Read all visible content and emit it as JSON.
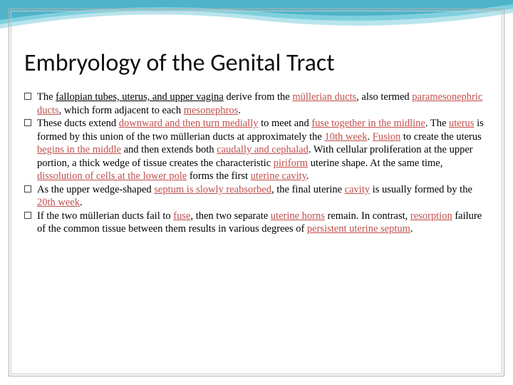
{
  "slide": {
    "title": "Embryology of the Genital Tract",
    "title_fontsize": 34,
    "text_fontsize": 14.5,
    "highlight_color": "#c0504d",
    "text_color": "#000000",
    "background_color": "#ffffff",
    "wave_colors": [
      "#4fb3c9",
      "#7fd0dd",
      "#b8e4ec"
    ],
    "border_colors": [
      "#b0b0b0",
      "#c8c8c8"
    ],
    "bullets": [
      {
        "parts": [
          {
            "t": "The ",
            "hl": false,
            "u": false
          },
          {
            "t": "fallopian tubes, uterus, and upper vagina",
            "hl": false,
            "u": true
          },
          {
            "t": " derive from the ",
            "hl": false,
            "u": false
          },
          {
            "t": "müllerian ducts",
            "hl": true,
            "u": true
          },
          {
            "t": ", also termed ",
            "hl": false,
            "u": false
          },
          {
            "t": "paramesonephric ducts",
            "hl": true,
            "u": true
          },
          {
            "t": ", which form adjacent to each ",
            "hl": false,
            "u": false
          },
          {
            "t": "mesonephros",
            "hl": true,
            "u": true
          },
          {
            "t": ".",
            "hl": false,
            "u": false
          }
        ]
      },
      {
        "parts": [
          {
            "t": " These ducts extend ",
            "hl": false,
            "u": false
          },
          {
            "t": "downward and then turn medially",
            "hl": true,
            "u": true
          },
          {
            "t": " to meet and ",
            "hl": false,
            "u": false
          },
          {
            "t": "fuse together in the midline",
            "hl": true,
            "u": true
          },
          {
            "t": ". The ",
            "hl": false,
            "u": false
          },
          {
            "t": "uterus",
            "hl": true,
            "u": true
          },
          {
            "t": " is formed by this union of the two müllerian ducts at approximately the ",
            "hl": false,
            "u": false
          },
          {
            "t": "10th week",
            "hl": true,
            "u": true
          },
          {
            "t": ". ",
            "hl": false,
            "u": false
          },
          {
            "t": "Fusion",
            "hl": true,
            "u": true
          },
          {
            "t": " to create the uterus ",
            "hl": false,
            "u": false
          },
          {
            "t": "begins in the middle",
            "hl": true,
            "u": true
          },
          {
            "t": " and then extends both ",
            "hl": false,
            "u": false
          },
          {
            "t": "caudally and cephalad",
            "hl": true,
            "u": true
          },
          {
            "t": ". With cellular proliferation at the upper portion, a thick wedge of tissue creates the characteristic ",
            "hl": false,
            "u": false
          },
          {
            "t": "piriform",
            "hl": true,
            "u": true
          },
          {
            "t": " uterine shape. At the same time, ",
            "hl": false,
            "u": false
          },
          {
            "t": "dissolution of cells at the lower pole",
            "hl": true,
            "u": true
          },
          {
            "t": " forms the first ",
            "hl": false,
            "u": false
          },
          {
            "t": "uterine cavity",
            "hl": true,
            "u": true
          },
          {
            "t": ".",
            "hl": false,
            "u": false
          }
        ]
      },
      {
        "parts": [
          {
            "t": "As the upper wedge-shaped ",
            "hl": false,
            "u": false
          },
          {
            "t": "septum is slowly reabsorbed",
            "hl": true,
            "u": true
          },
          {
            "t": ", the final uterine ",
            "hl": false,
            "u": false
          },
          {
            "t": "cavity",
            "hl": true,
            "u": true
          },
          {
            "t": " is usually formed by the ",
            "hl": false,
            "u": false
          },
          {
            "t": "20th week",
            "hl": true,
            "u": true
          },
          {
            "t": ".",
            "hl": false,
            "u": false
          }
        ]
      },
      {
        "parts": [
          {
            "t": "If the two müllerian ducts fail to ",
            "hl": false,
            "u": false
          },
          {
            "t": "fuse",
            "hl": true,
            "u": true
          },
          {
            "t": ", then two separate ",
            "hl": false,
            "u": false
          },
          {
            "t": "uterine horns",
            "hl": true,
            "u": true
          },
          {
            "t": " remain. In contrast, ",
            "hl": false,
            "u": false
          },
          {
            "t": "resorption",
            "hl": true,
            "u": true
          },
          {
            "t": " failure of the common tissue between them results in various degrees of ",
            "hl": false,
            "u": false
          },
          {
            "t": "persistent uterine septum",
            "hl": true,
            "u": true
          },
          {
            "t": ".",
            "hl": false,
            "u": false
          }
        ]
      }
    ]
  }
}
